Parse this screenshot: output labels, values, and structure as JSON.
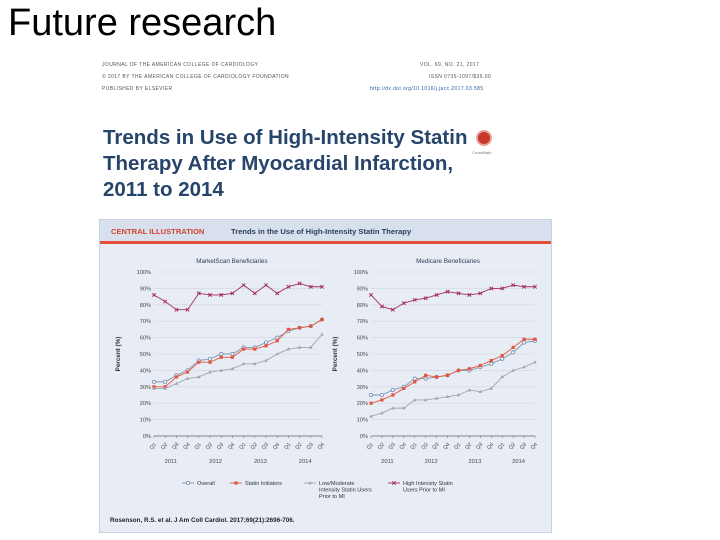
{
  "slide": {
    "title": "Future research"
  },
  "journal_header": {
    "journal": "JOURNAL OF THE AMERICAN COLLEGE OF CARDIOLOGY",
    "volume": "VOL. 69, NO. 21, 2017",
    "copyright": "© 2017 BY THE AMERICAN COLLEGE OF CARDIOLOGY FOUNDATION",
    "issn": "ISSN 0735-1097/$36.00",
    "publisher": "PUBLISHED BY ELSEVIER",
    "doi": "http://dx.doi.org/10.1016/j.jacc.2017.03.585"
  },
  "paper": {
    "title_lines": [
      "Trends in Use of High-Intensity Statin",
      "Therapy After Myocardial Infarction,",
      "2011 to 2014"
    ],
    "crossmark_label": "CrossMark",
    "crossmark_color": "#c73a2a"
  },
  "central_illustration": {
    "label": "CENTRAL ILLUSTRATION",
    "subtitle": "Trends in the Use of High-Intensity Statin Therapy",
    "citation": "Rosenson, R.S. et al. J Am Coll Cardiol. 2017;69(21):2696-706."
  },
  "chart_data": [
    {
      "type": "line",
      "title": "MarketScan Beneficiaries",
      "xlabel": "",
      "ylabel": "Percent (%)",
      "ylim": [
        0,
        100
      ],
      "yticks": [
        "0%",
        "10%",
        "20%",
        "30%",
        "40%",
        "50%",
        "60%",
        "70%",
        "80%",
        "90%",
        "100%"
      ],
      "categories": [
        "Q1",
        "Q2",
        "Q3",
        "Q4",
        "Q1",
        "Q2",
        "Q3",
        "Q4",
        "Q1",
        "Q2",
        "Q3",
        "Q4",
        "Q1",
        "Q2",
        "Q3",
        "Q4"
      ],
      "years": [
        "2011",
        "2012",
        "2013",
        "2014"
      ],
      "series": [
        {
          "name": "Overall",
          "color": "#7f93b3",
          "marker": "circle",
          "values": [
            33,
            33,
            37,
            40,
            46,
            47,
            50,
            50,
            54,
            54,
            57,
            60,
            64,
            66,
            67,
            71
          ]
        },
        {
          "name": "Statin Initiators",
          "color": "#e2553f",
          "marker": "square",
          "values": [
            30,
            30,
            36,
            39,
            45,
            45,
            48,
            48,
            53,
            53,
            55,
            58,
            65,
            66,
            67,
            71
          ]
        },
        {
          "name": "Low/Moderate Intensity Statin Users Prior to MI",
          "color": "#a0a6ae",
          "marker": "triangle",
          "values": [
            29,
            29,
            32,
            35,
            36,
            39,
            40,
            41,
            44,
            44,
            46,
            50,
            53,
            54,
            54,
            62
          ]
        },
        {
          "name": "High Intensity Statin Users Prior to MI",
          "color": "#a4305a",
          "marker": "x",
          "values": [
            86,
            82,
            77,
            77,
            87,
            86,
            86,
            87,
            92,
            87,
            92,
            87,
            91,
            93,
            91,
            91
          ]
        }
      ]
    },
    {
      "type": "line",
      "title": "Medicare Beneficiaries",
      "xlabel": "",
      "ylabel": "Percent (%)",
      "ylim": [
        0,
        100
      ],
      "yticks": [
        "0%",
        "10%",
        "20%",
        "30%",
        "40%",
        "50%",
        "60%",
        "70%",
        "80%",
        "90%",
        "100%"
      ],
      "categories": [
        "Q1",
        "Q2",
        "Q3",
        "Q4",
        "Q1",
        "Q2",
        "Q3",
        "Q4",
        "Q1",
        "Q2",
        "Q3",
        "Q4",
        "Q1",
        "Q2",
        "Q3",
        "Q4"
      ],
      "years": [
        "2011",
        "2012",
        "2013",
        "2014"
      ],
      "series": [
        {
          "name": "Overall",
          "color": "#7f93b3",
          "marker": "circle",
          "values": [
            25,
            25,
            28,
            30,
            35,
            35,
            36,
            37,
            40,
            40,
            42,
            44,
            47,
            51,
            57,
            58
          ]
        },
        {
          "name": "Statin Initiators",
          "color": "#e2553f",
          "marker": "square",
          "values": [
            20,
            22,
            25,
            29,
            33,
            37,
            36,
            37,
            40,
            41,
            43,
            46,
            49,
            54,
            59,
            59
          ]
        },
        {
          "name": "Low/Moderate Intensity Statin Users Prior to MI",
          "color": "#a0a6ae",
          "marker": "triangle",
          "values": [
            12,
            14,
            17,
            17,
            22,
            22,
            23,
            24,
            25,
            28,
            27,
            29,
            36,
            40,
            42,
            45
          ]
        },
        {
          "name": "High Intensity Statin Users Prior to MI",
          "color": "#a4305a",
          "marker": "x",
          "values": [
            86,
            79,
            77,
            81,
            83,
            84,
            86,
            88,
            87,
            86,
            87,
            90,
            90,
            92,
            91,
            91
          ]
        }
      ]
    }
  ],
  "legend": [
    {
      "label": "Overall"
    },
    {
      "label": "Statin Initiators"
    },
    {
      "label_lines": [
        "Low/Moderate",
        "Intensity Statin Users",
        "Prior to MI"
      ]
    },
    {
      "label_lines": [
        "High Intensity Statin",
        "Users Prior to MI"
      ]
    }
  ]
}
